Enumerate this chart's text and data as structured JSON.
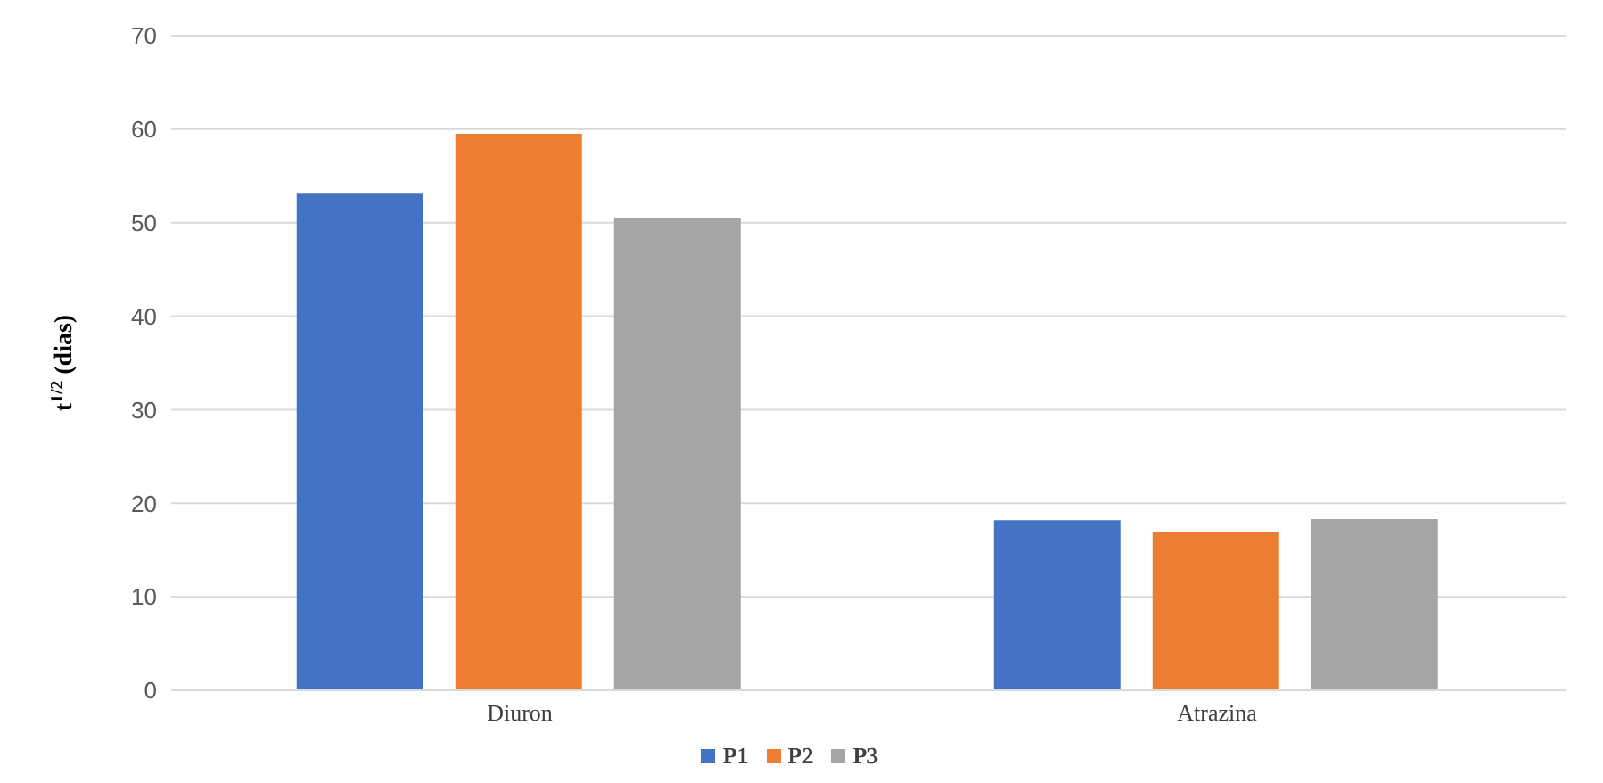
{
  "chart_data": {
    "type": "bar",
    "ylabel": "t$^{1/2}$ (dias)",
    "categories": [
      "Diuron",
      "Atrazina"
    ],
    "series": [
      {
        "name": "P1",
        "color": "#4472c4",
        "values": [
          53.2,
          18.2
        ]
      },
      {
        "name": "P2",
        "color": "#ed7d31",
        "values": [
          59.5,
          16.9
        ]
      },
      {
        "name": "P3",
        "color": "#a5a5a5",
        "values": [
          50.5,
          18.3
        ]
      }
    ],
    "ylim": [
      0,
      70
    ],
    "yticks": [
      0,
      10,
      20,
      30,
      40,
      50,
      60,
      70
    ],
    "grid": "y",
    "legend": "bottom"
  }
}
